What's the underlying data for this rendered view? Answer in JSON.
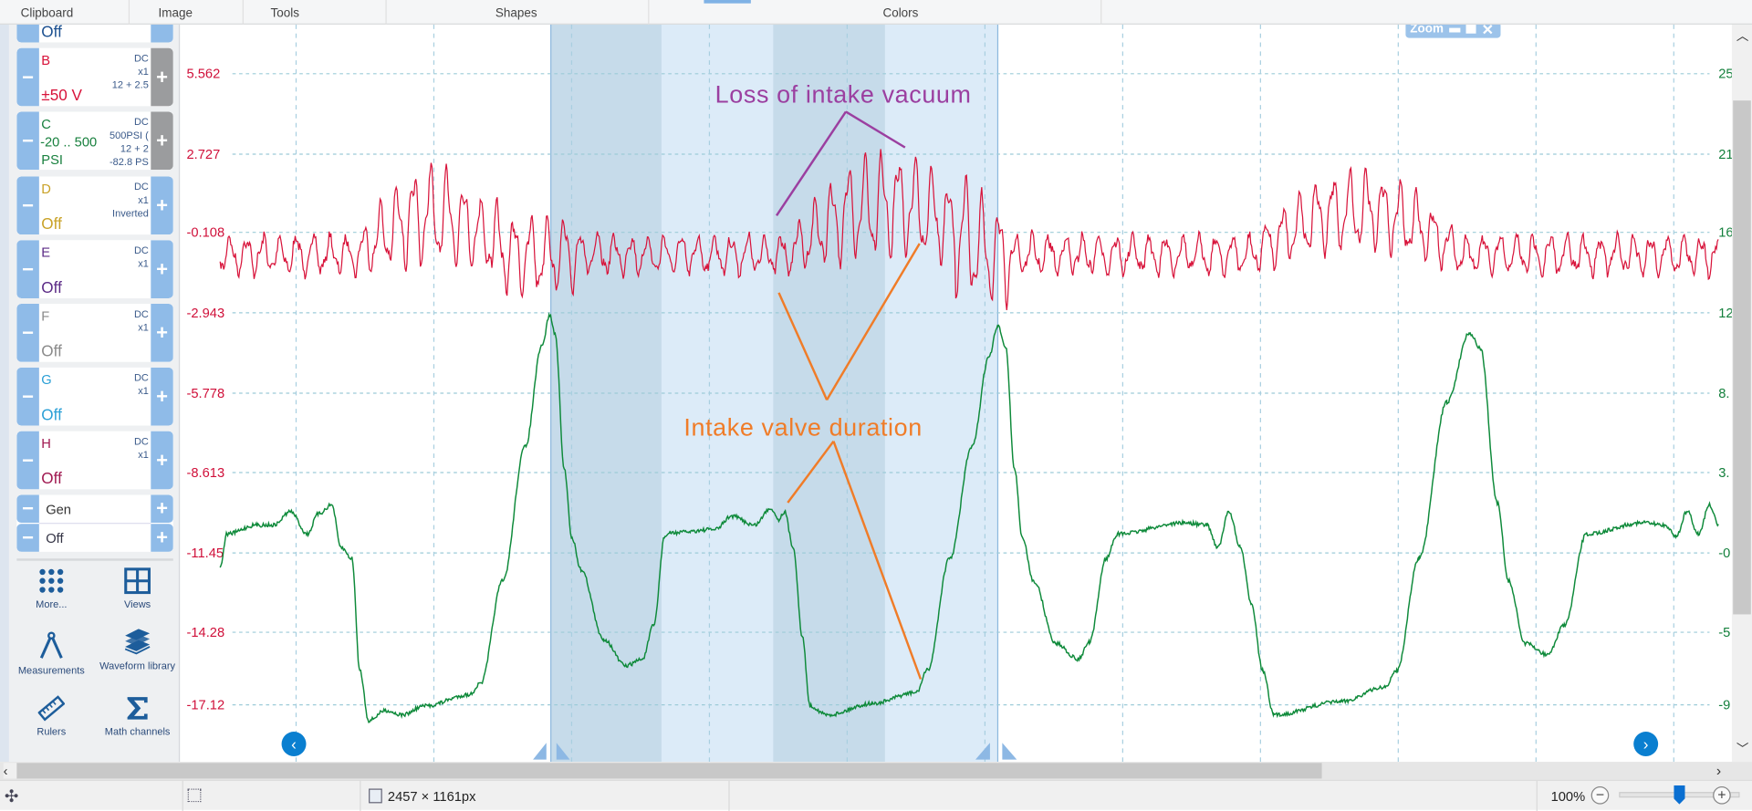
{
  "toolbar": {
    "groups": [
      "Clipboard",
      "Image",
      "Tools",
      "Shapes",
      "Colors"
    ]
  },
  "channels": [
    {
      "letter": "",
      "value": "Off",
      "info": [],
      "color": "#1a4f8f"
    },
    {
      "letter": "B",
      "value": "±50 V",
      "info": [
        "DC",
        "x1",
        "12 + 2.5"
      ],
      "color": "#d8133a",
      "plus_gray": true
    },
    {
      "letter": "C",
      "value": "-20 .. 500",
      "value2": "PSI",
      "info": [
        "DC",
        "500PSI (",
        "12 + 2",
        "-82.8 PS"
      ],
      "color": "#18803e",
      "plus_gray": true
    },
    {
      "letter": "D",
      "value": "Off",
      "info": [
        "DC",
        "x1",
        "Inverted"
      ],
      "color": "#c9a227"
    },
    {
      "letter": "E",
      "value": "Off",
      "info": [
        "DC",
        "x1"
      ],
      "color": "#5b2a86"
    },
    {
      "letter": "F",
      "value": "Off",
      "info": [
        "DC",
        "x1"
      ],
      "color": "#8a8a8a"
    },
    {
      "letter": "G",
      "value": "Off",
      "info": [
        "DC",
        "x1"
      ],
      "color": "#2a9fd6"
    },
    {
      "letter": "H",
      "value": "Off",
      "info": [
        "DC",
        "x1"
      ],
      "color": "#a01850"
    }
  ],
  "generator": {
    "label": "Gen",
    "value": "Off"
  },
  "tools": {
    "more": "More...",
    "views": "Views",
    "measurements": "Measurements",
    "waveform_library": "Waveform library",
    "rulers": "Rulers",
    "math_channels": "Math channels"
  },
  "axes": {
    "left": [
      "5.562",
      "2.727",
      "-0.108",
      "-2.943",
      "-5.778",
      "-8.613",
      "-11.45",
      "-14.28",
      "-17.12"
    ],
    "right": [
      "25",
      "21",
      "16",
      "12",
      "8.",
      "3.",
      "-0",
      "-5",
      "-9"
    ],
    "left_color": "#d0103a",
    "right_color": "#14803c"
  },
  "traces": {
    "channel_b_color": "#d8133a",
    "channel_c_color": "#0e8a3a"
  },
  "annotations": {
    "vacuum": {
      "text": "Loss of intake vacuum",
      "color": "#9b3fa0"
    },
    "valve": {
      "text": "Intake valve duration",
      "color": "#f07c28"
    }
  },
  "zoom_widget": {
    "label": "Zoom"
  },
  "status": {
    "image_size": "2457 × 1161px",
    "zoom": "100%",
    "zoom_slider_fraction": 0.5
  }
}
